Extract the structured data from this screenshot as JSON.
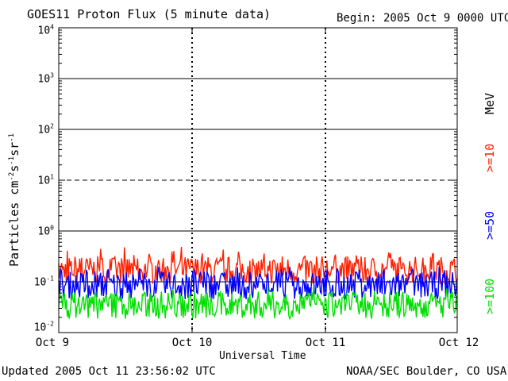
{
  "header": {
    "title": "GOES11 Proton Flux (5 minute data)",
    "begin": "Begin: 2005 Oct 9 0000 UTC"
  },
  "footer": {
    "updated": "Updated 2005 Oct 11 23:56:02 UTC",
    "credit": "NOAA/SEC Boulder, CO USA"
  },
  "chart_data": {
    "type": "line",
    "title": "GOES11 Proton Flux (5 minute data)",
    "xlabel": "Universal Time",
    "ylabel": "Particles cm-2s-1sr-1",
    "yscale": "log",
    "ylim": [
      0.01,
      10000
    ],
    "xlim": [
      "2005-10-09",
      "2005-10-12"
    ],
    "x_ticks": [
      "Oct 9",
      "Oct 10",
      "Oct 11",
      "Oct 12"
    ],
    "y_ticks": [
      {
        "base": "10",
        "exp": "4"
      },
      {
        "base": "10",
        "exp": "3"
      },
      {
        "base": "10",
        "exp": "2"
      },
      {
        "base": "10",
        "exp": "1"
      },
      {
        "base": "10",
        "exp": "0"
      },
      {
        "base": "10",
        "exp": "-1"
      },
      {
        "base": "10",
        "exp": "-2"
      }
    ],
    "right_labels": {
      "unit": "MeV",
      "s10": ">=10",
      "s50": ">=50",
      "s100": ">=100"
    },
    "threshold_lines": [
      1000,
      100,
      10,
      1,
      0.1
    ],
    "grid": false,
    "series": [
      {
        "name": ">=10",
        "color": "#ff2000",
        "median": 0.17,
        "min": 0.09,
        "max": 0.5
      },
      {
        "name": ">=50",
        "color": "#0000ff",
        "median": 0.085,
        "min": 0.04,
        "max": 0.2
      },
      {
        "name": ">=100",
        "color": "#00e000",
        "median": 0.035,
        "min": 0.015,
        "max": 0.08
      }
    ]
  }
}
